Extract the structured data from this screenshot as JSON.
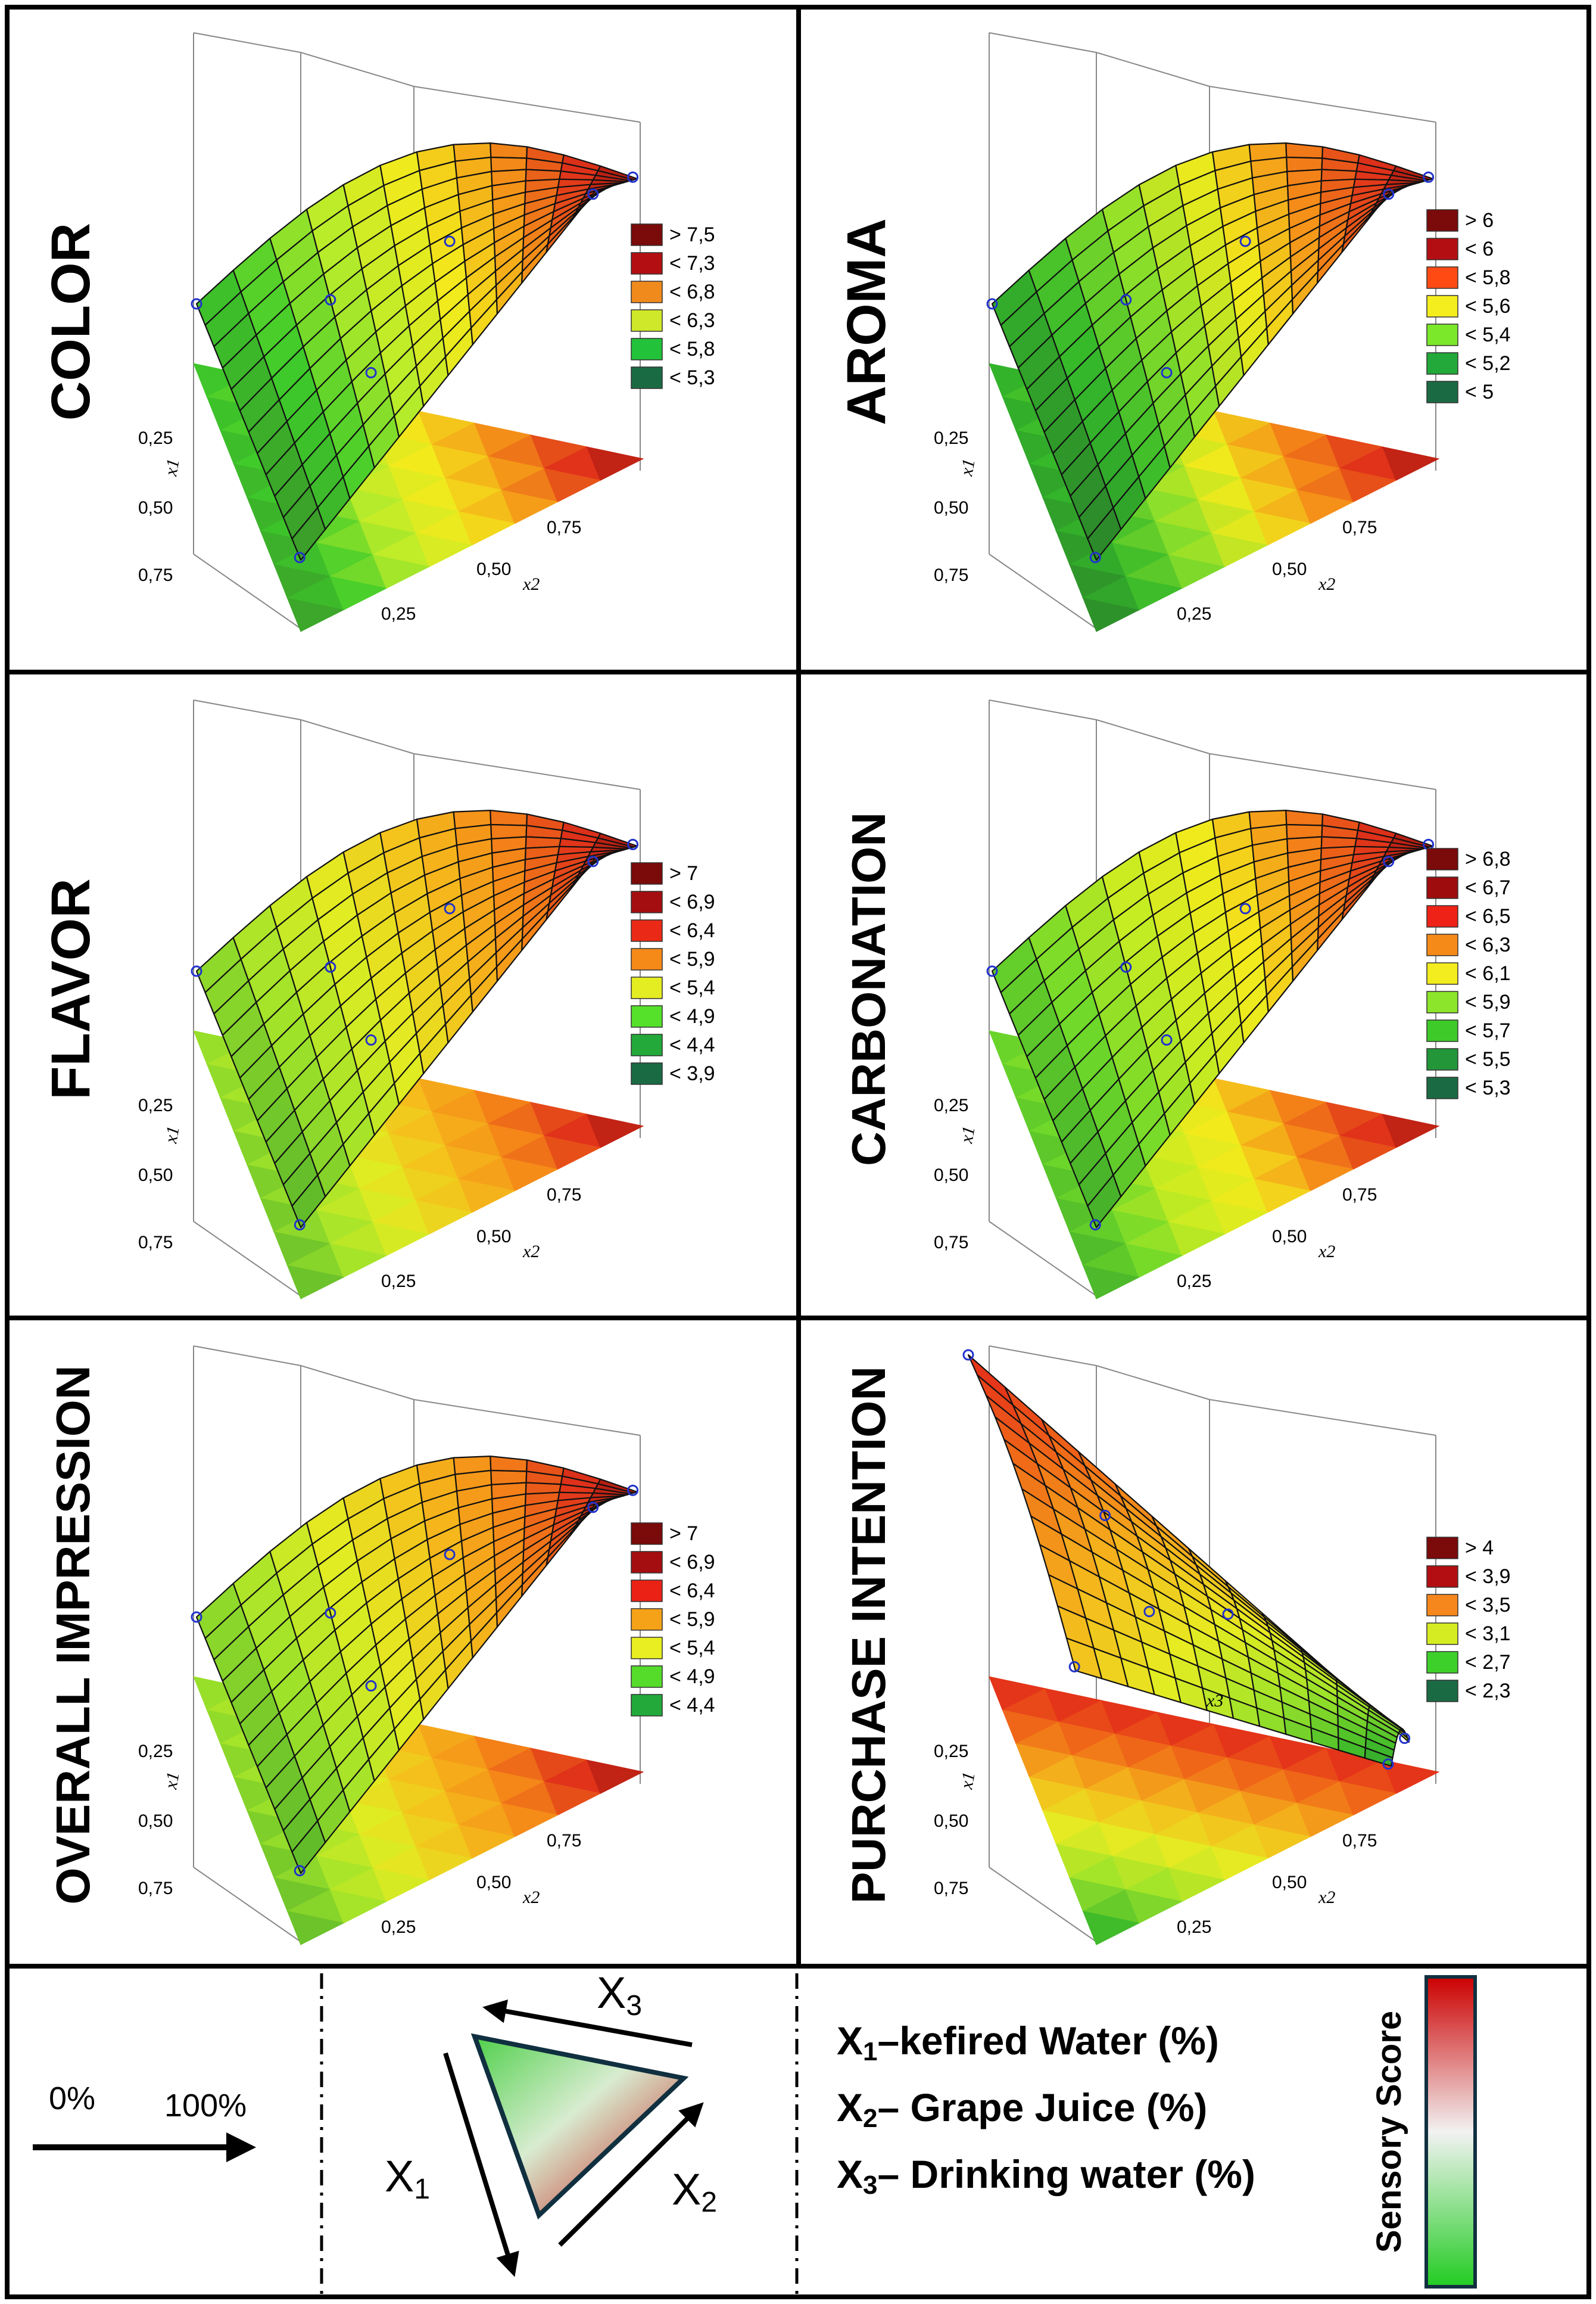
{
  "chart_data": [
    {
      "type": "surface-ternary",
      "title": "COLOR",
      "axis_labels": [
        "x1",
        "x2"
      ],
      "ticks": [
        "0,25",
        "0,50",
        "0,75"
      ],
      "legend": [
        {
          "label": "> 7,5",
          "color": "#7b0a0a"
        },
        {
          "label": "< 7,3",
          "color": "#b30f12"
        },
        {
          "label": "< 6,8",
          "color": "#f08a1c"
        },
        {
          "label": "< 6,3",
          "color": "#cfe82a"
        },
        {
          "label": "< 5,8",
          "color": "#22c23a"
        },
        {
          "label": "< 5,3",
          "color": "#1a6b43"
        }
      ],
      "palette": [
        "#3a8f2a",
        "#3ecb2a",
        "#b9ec2a",
        "#f3ea1c",
        "#f59a18",
        "#e0321a",
        "#8e0a0a"
      ],
      "surface_trend": "rising-to-right"
    },
    {
      "type": "surface-ternary",
      "title": "AROMA",
      "axis_labels": [
        "x1",
        "x2"
      ],
      "ticks": [
        "0,25",
        "0,50",
        "0,75"
      ],
      "legend": [
        {
          "label": "> 6",
          "color": "#7b0a0a"
        },
        {
          "label": "< 6",
          "color": "#b30f12"
        },
        {
          "label": "< 5,8",
          "color": "#ff4a14"
        },
        {
          "label": "< 5,6",
          "color": "#f4ee1e"
        },
        {
          "label": "< 5,4",
          "color": "#7be82a"
        },
        {
          "label": "< 5,2",
          "color": "#22a93a"
        },
        {
          "label": "< 5",
          "color": "#1a6b43"
        }
      ],
      "palette": [
        "#2a7a2a",
        "#34b82a",
        "#8fe02a",
        "#f0ea1c",
        "#f58c18",
        "#e0321a",
        "#8e0a0a"
      ],
      "surface_trend": "rising-to-right"
    },
    {
      "type": "surface-ternary",
      "title": "FLAVOR",
      "axis_labels": [
        "x1",
        "x2"
      ],
      "ticks": [
        "0,25",
        "0,50",
        "0,75"
      ],
      "legend": [
        {
          "label": "> 7",
          "color": "#7b0a0a"
        },
        {
          "label": "< 6,9",
          "color": "#a40e10"
        },
        {
          "label": "< 6,4",
          "color": "#ea2a16"
        },
        {
          "label": "< 5,9",
          "color": "#f58a18"
        },
        {
          "label": "< 5,4",
          "color": "#e4ec22"
        },
        {
          "label": "< 4,9",
          "color": "#55e02a"
        },
        {
          "label": "< 4,4",
          "color": "#22a93a"
        },
        {
          "label": "< 3,9",
          "color": "#1a6b43"
        }
      ],
      "palette": [
        "#4cae2a",
        "#9fe32a",
        "#e2ec22",
        "#f5c01c",
        "#f58a18",
        "#e0321a",
        "#8e0a0a"
      ],
      "surface_trend": "rising-to-right"
    },
    {
      "type": "surface-ternary",
      "title": "CARBONATION",
      "axis_labels": [
        "x1",
        "x2"
      ],
      "ticks": [
        "0,25",
        "0,50",
        "0,75"
      ],
      "legend": [
        {
          "label": "> 6,8",
          "color": "#7b0a0a"
        },
        {
          "label": "< 6,7",
          "color": "#9e0c0e"
        },
        {
          "label": "< 6,5",
          "color": "#ee2216"
        },
        {
          "label": "< 6,3",
          "color": "#f58a18"
        },
        {
          "label": "< 6,1",
          "color": "#f3ec1e"
        },
        {
          "label": "< 5,9",
          "color": "#8ce52a"
        },
        {
          "label": "< 5,7",
          "color": "#3ecb2a"
        },
        {
          "label": "< 5,5",
          "color": "#23963a"
        },
        {
          "label": "< 5,3",
          "color": "#1a6b43"
        }
      ],
      "palette": [
        "#3aa52a",
        "#6ed82a",
        "#c7ec22",
        "#f3ea1c",
        "#f58a18",
        "#e0321a",
        "#8e0a0a"
      ],
      "surface_trend": "rising-to-right"
    },
    {
      "type": "surface-ternary",
      "title": "OVERALL IMPRESSION",
      "axis_labels": [
        "x1",
        "x2"
      ],
      "ticks": [
        "0,25",
        "0,50",
        "0,75"
      ],
      "legend": [
        {
          "label": "> 7",
          "color": "#7b0a0a"
        },
        {
          "label": "< 6,9",
          "color": "#a40e10"
        },
        {
          "label": "< 6,4",
          "color": "#ea2216"
        },
        {
          "label": "< 5,9",
          "color": "#f5a218"
        },
        {
          "label": "< 5,4",
          "color": "#e8ee22"
        },
        {
          "label": "< 4,9",
          "color": "#55dc2a"
        },
        {
          "label": "< 4,4",
          "color": "#22a93a"
        }
      ],
      "palette": [
        "#4cae2a",
        "#9fe32a",
        "#e2ec22",
        "#f5c01c",
        "#f58a18",
        "#e0321a",
        "#8e0a0a"
      ],
      "surface_trend": "rising-to-right"
    },
    {
      "type": "surface-ternary",
      "title": "PURCHASE INTENTION",
      "axis_labels": [
        "x1",
        "x2",
        "x3"
      ],
      "ticks": [
        "0,25",
        "0,50",
        "0,75"
      ],
      "legend": [
        {
          "label": "> 4",
          "color": "#7b0a0a"
        },
        {
          "label": "< 3,9",
          "color": "#b30f12"
        },
        {
          "label": "< 3,5",
          "color": "#f5871c"
        },
        {
          "label": "< 3,1",
          "color": "#d6ec22"
        },
        {
          "label": "< 2,7",
          "color": "#3ed02a"
        },
        {
          "label": "< 2,3",
          "color": "#1a6b43"
        }
      ],
      "palette": [
        "#e0201a",
        "#f06a18",
        "#f5b81c",
        "#e6ec22",
        "#9ee32a",
        "#40bb2a",
        "#1f8a35"
      ],
      "surface_trend": "falling-to-right"
    }
  ],
  "key": {
    "arrow_start": "0%",
    "arrow_end": "100%",
    "edge_labels": {
      "x1": {
        "main": "X",
        "sub": "1"
      },
      "x2": {
        "main": "X",
        "sub": "2"
      },
      "x3": {
        "main": "X",
        "sub": "3"
      }
    },
    "variables": [
      {
        "main": "X",
        "sub": "1",
        "text": "–kefired Water (%)"
      },
      {
        "main": "X",
        "sub": "2",
        "text": "– Grape Juice (%)"
      },
      {
        "main": "X",
        "sub": "3",
        "text": "– Drinking water (%)"
      }
    ],
    "scale_label": "Sensory Score",
    "scale_colors": [
      "#cc0000",
      "#f2f2f2",
      "#22cc22"
    ]
  }
}
